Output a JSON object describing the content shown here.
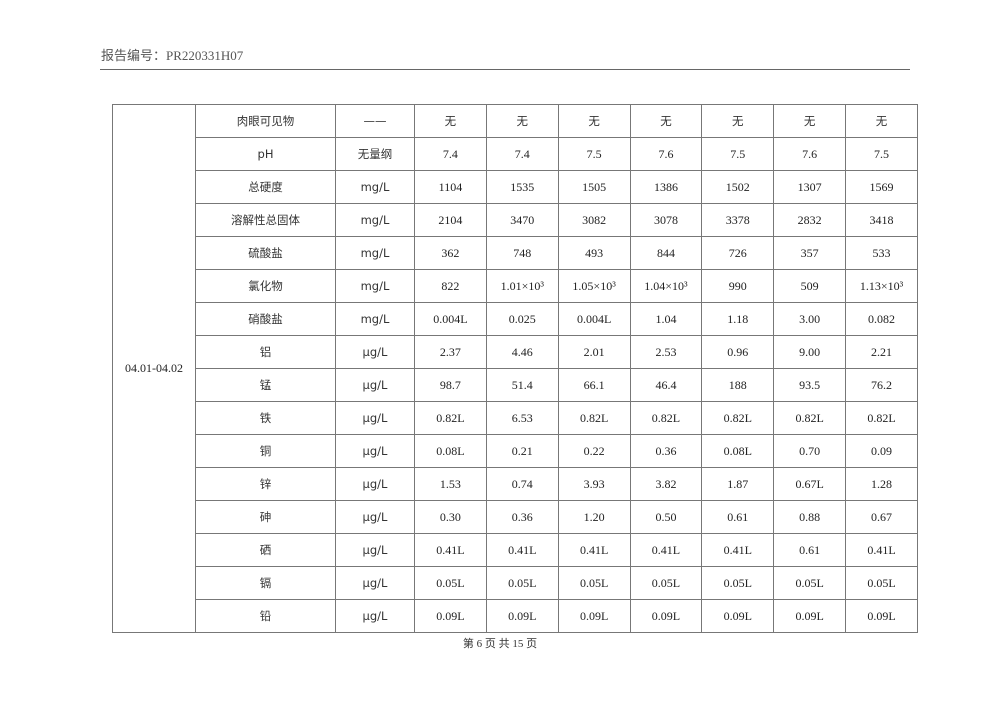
{
  "header": {
    "report_no": "报告编号：PR220331H07"
  },
  "table": {
    "date": "04.01-04.02",
    "rows": [
      {
        "param": "肉眼可见物",
        "unit": "——",
        "values": [
          "无",
          "无",
          "无",
          "无",
          "无",
          "无",
          "无"
        ]
      },
      {
        "param": "pH",
        "unit": "无量纲",
        "values": [
          "7.4",
          "7.4",
          "7.5",
          "7.6",
          "7.5",
          "7.6",
          "7.5"
        ]
      },
      {
        "param": "总硬度",
        "unit": "mg/L",
        "values": [
          "1104",
          "1535",
          "1505",
          "1386",
          "1502",
          "1307",
          "1569"
        ]
      },
      {
        "param": "溶解性总固体",
        "unit": "mg/L",
        "values": [
          "2104",
          "3470",
          "3082",
          "3078",
          "3378",
          "2832",
          "3418"
        ]
      },
      {
        "param": "硫酸盐",
        "unit": "mg/L",
        "values": [
          "362",
          "748",
          "493",
          "844",
          "726",
          "357",
          "533"
        ]
      },
      {
        "param": "氯化物",
        "unit": "mg/L",
        "values": [
          "822",
          "1.01×10³",
          "1.05×10³",
          "1.04×10³",
          "990",
          "509",
          "1.13×10³"
        ]
      },
      {
        "param": "硝酸盐",
        "unit": "mg/L",
        "values": [
          "0.004L",
          "0.025",
          "0.004L",
          "1.04",
          "1.18",
          "3.00",
          "0.082"
        ]
      },
      {
        "param": "铝",
        "unit": "μg/L",
        "values": [
          "2.37",
          "4.46",
          "2.01",
          "2.53",
          "0.96",
          "9.00",
          "2.21"
        ]
      },
      {
        "param": "锰",
        "unit": "μg/L",
        "values": [
          "98.7",
          "51.4",
          "66.1",
          "46.4",
          "188",
          "93.5",
          "76.2"
        ]
      },
      {
        "param": "铁",
        "unit": "μg/L",
        "values": [
          "0.82L",
          "6.53",
          "0.82L",
          "0.82L",
          "0.82L",
          "0.82L",
          "0.82L"
        ]
      },
      {
        "param": "铜",
        "unit": "μg/L",
        "values": [
          "0.08L",
          "0.21",
          "0.22",
          "0.36",
          "0.08L",
          "0.70",
          "0.09"
        ]
      },
      {
        "param": "锌",
        "unit": "μg/L",
        "values": [
          "1.53",
          "0.74",
          "3.93",
          "3.82",
          "1.87",
          "0.67L",
          "1.28"
        ]
      },
      {
        "param": "砷",
        "unit": "μg/L",
        "values": [
          "0.30",
          "0.36",
          "1.20",
          "0.50",
          "0.61",
          "0.88",
          "0.67"
        ]
      },
      {
        "param": "硒",
        "unit": "μg/L",
        "values": [
          "0.41L",
          "0.41L",
          "0.41L",
          "0.41L",
          "0.41L",
          "0.61",
          "0.41L"
        ]
      },
      {
        "param": "镉",
        "unit": "μg/L",
        "values": [
          "0.05L",
          "0.05L",
          "0.05L",
          "0.05L",
          "0.05L",
          "0.05L",
          "0.05L"
        ]
      },
      {
        "param": "铅",
        "unit": "μg/L",
        "values": [
          "0.09L",
          "0.09L",
          "0.09L",
          "0.09L",
          "0.09L",
          "0.09L",
          "0.09L"
        ]
      }
    ]
  },
  "footer": {
    "page": "第 6 页 共 15 页"
  }
}
